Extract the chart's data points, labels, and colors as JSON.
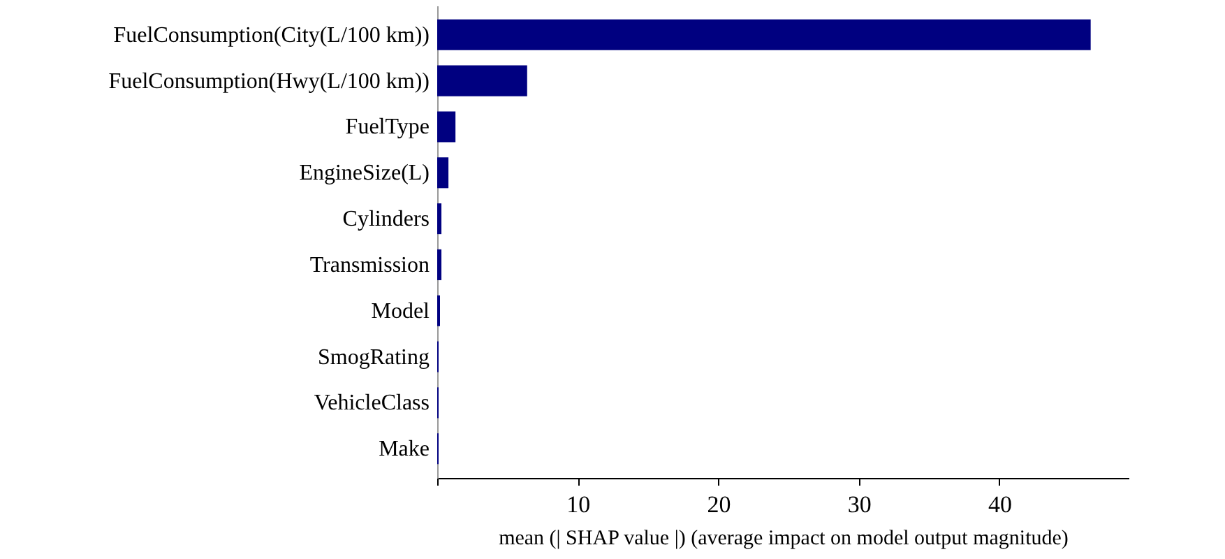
{
  "chart_data": {
    "type": "bar",
    "orientation": "horizontal",
    "xlabel": "mean (| SHAP value |)    (average impact on model output magnitude)",
    "categories": [
      "FuelConsumption(City(L/100 km))",
      "FuelConsumption(Hwy(L/100 km))",
      "FuelType",
      "EngineSize(L)",
      "Cylinders",
      "Transmission",
      "Model",
      "SmogRating",
      "VehicleClass",
      "Make"
    ],
    "values": [
      46.5,
      6.4,
      1.3,
      0.8,
      0.3,
      0.3,
      0.2,
      0.1,
      0.1,
      0.1
    ],
    "color": "#000080",
    "xlim": [
      0,
      49.2
    ],
    "xticks": [
      {
        "value": 0,
        "label": null
      },
      10,
      20,
      30,
      40
    ],
    "grid": false
  }
}
